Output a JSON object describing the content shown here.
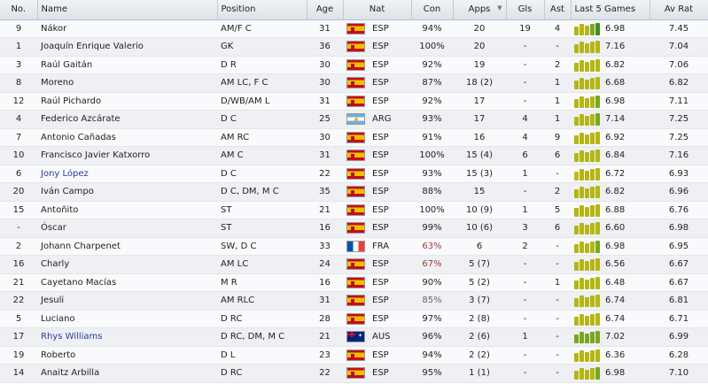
{
  "columns": {
    "no": "No.",
    "name": "Name",
    "position": "Position",
    "age": "Age",
    "nat": "Nat",
    "con": "Con",
    "apps": "Apps",
    "gls": "Gls",
    "ast": "Ast",
    "last5": "Last 5 Games",
    "avrat": "Av Rat"
  },
  "players": [
    {
      "no": "9",
      "name": "Nákor",
      "position": "AM/F C",
      "age": "31",
      "flag": "esp",
      "nat": "ESP",
      "con": "94%",
      "apps": "20",
      "gls": "19",
      "ast": "4",
      "bars": [
        "y",
        "y",
        "y",
        "g",
        "dg"
      ],
      "rating": "6.98",
      "avrat": "7.45"
    },
    {
      "no": "1",
      "name": "Joaquín Enrique Valerio",
      "position": "GK",
      "age": "36",
      "flag": "esp",
      "nat": "ESP",
      "con": "100%",
      "apps": "20",
      "gls": "-",
      "ast": "-",
      "bars": [
        "y",
        "y",
        "y",
        "y",
        "y"
      ],
      "rating": "7.16",
      "avrat": "7.04"
    },
    {
      "no": "3",
      "name": "Raúl Gaitán",
      "position": "D R",
      "age": "30",
      "flag": "esp",
      "nat": "ESP",
      "con": "92%",
      "apps": "19",
      "gls": "-",
      "ast": "2",
      "bars": [
        "y",
        "y",
        "y",
        "y",
        "y"
      ],
      "rating": "6.82",
      "avrat": "7.06"
    },
    {
      "no": "8",
      "name": "Moreno",
      "position": "AM LC, F C",
      "age": "30",
      "flag": "esp",
      "nat": "ESP",
      "con": "87%",
      "apps": "18 (2)",
      "gls": "-",
      "ast": "1",
      "bars": [
        "y",
        "y",
        "y",
        "y",
        "y"
      ],
      "rating": "6.68",
      "avrat": "6.82"
    },
    {
      "no": "12",
      "name": "Raúl Pichardo",
      "position": "D/WB/AM L",
      "age": "31",
      "flag": "esp",
      "nat": "ESP",
      "con": "92%",
      "apps": "17",
      "gls": "-",
      "ast": "1",
      "bars": [
        "y",
        "y",
        "y",
        "y",
        "g"
      ],
      "rating": "6.98",
      "avrat": "7.11"
    },
    {
      "no": "4",
      "name": "Federico Azcárate",
      "position": "D C",
      "age": "25",
      "flag": "arg",
      "nat": "ARG",
      "con": "93%",
      "apps": "17",
      "gls": "4",
      "ast": "1",
      "bars": [
        "y",
        "y",
        "y",
        "y",
        "g"
      ],
      "rating": "7.14",
      "avrat": "7.25"
    },
    {
      "no": "7",
      "name": "Antonio Cañadas",
      "position": "AM RC",
      "age": "30",
      "flag": "esp",
      "nat": "ESP",
      "con": "91%",
      "apps": "16",
      "gls": "4",
      "ast": "9",
      "bars": [
        "y",
        "y",
        "y",
        "y",
        "y"
      ],
      "rating": "6.92",
      "avrat": "7.25"
    },
    {
      "no": "10",
      "name": "Francisco Javier Katxorro",
      "position": "AM C",
      "age": "31",
      "flag": "esp",
      "nat": "ESP",
      "con": "100%",
      "apps": "15 (4)",
      "gls": "6",
      "ast": "6",
      "bars": [
        "y",
        "y",
        "y",
        "y",
        "y"
      ],
      "rating": "6.84",
      "avrat": "7.16"
    },
    {
      "no": "6",
      "name": "Jony López",
      "position": "D C",
      "age": "22",
      "flag": "esp",
      "nat": "ESP",
      "con": "93%",
      "apps": "15 (3)",
      "gls": "1",
      "ast": "-",
      "bars": [
        "o",
        "y",
        "y",
        "y",
        "y"
      ],
      "rating": "6.72",
      "avrat": "6.93",
      "link": true
    },
    {
      "no": "20",
      "name": "Iván Campo",
      "position": "D C, DM, M C",
      "age": "35",
      "flag": "esp",
      "nat": "ESP",
      "con": "88%",
      "apps": "15",
      "gls": "-",
      "ast": "2",
      "bars": [
        "y",
        "y",
        "y",
        "y",
        "y"
      ],
      "rating": "6.82",
      "avrat": "6.96"
    },
    {
      "no": "15",
      "name": "Antoñito",
      "position": "ST",
      "age": "21",
      "flag": "esp",
      "nat": "ESP",
      "con": "100%",
      "apps": "10 (9)",
      "gls": "1",
      "ast": "5",
      "bars": [
        "y",
        "y",
        "y",
        "y",
        "y"
      ],
      "rating": "6.88",
      "avrat": "6.76"
    },
    {
      "no": "-",
      "name": "Óscar",
      "position": "ST",
      "age": "16",
      "flag": "esp",
      "nat": "ESP",
      "con": "99%",
      "apps": "10 (6)",
      "gls": "3",
      "ast": "6",
      "bars": [
        "y",
        "y",
        "y",
        "y",
        "y"
      ],
      "rating": "6.60",
      "avrat": "6.98"
    },
    {
      "no": "2",
      "name": "Johann Charpenet",
      "position": "SW, D C",
      "age": "33",
      "flag": "fra",
      "nat": "FRA",
      "con": "63%",
      "apps": "6",
      "gls": "2",
      "ast": "-",
      "bars": [
        "y",
        "y",
        "y",
        "y",
        "g"
      ],
      "rating": "6.98",
      "avrat": "6.95",
      "warn": true
    },
    {
      "no": "16",
      "name": "Charly",
      "position": "AM LC",
      "age": "24",
      "flag": "esp",
      "nat": "ESP",
      "con": "67%",
      "apps": "5 (7)",
      "gls": "-",
      "ast": "-",
      "bars": [
        "y",
        "y",
        "y",
        "y",
        "y"
      ],
      "rating": "6.56",
      "avrat": "6.67",
      "warn": true
    },
    {
      "no": "21",
      "name": "Cayetano Macías",
      "position": "M R",
      "age": "16",
      "flag": "esp",
      "nat": "ESP",
      "con": "90%",
      "apps": "5 (2)",
      "gls": "-",
      "ast": "1",
      "bars": [
        "y",
        "y",
        "y",
        "y",
        "y"
      ],
      "rating": "6.48",
      "avrat": "6.67"
    },
    {
      "no": "22",
      "name": "Jesuli",
      "position": "AM RLC",
      "age": "31",
      "flag": "esp",
      "nat": "ESP",
      "con": "85%",
      "apps": "3 (7)",
      "gls": "-",
      "ast": "-",
      "bars": [
        "y",
        "y",
        "y",
        "y",
        "y"
      ],
      "rating": "6.74",
      "avrat": "6.81",
      "mutedcon": true
    },
    {
      "no": "5",
      "name": "Luciano",
      "position": "D RC",
      "age": "28",
      "flag": "esp",
      "nat": "ESP",
      "con": "97%",
      "apps": "2 (8)",
      "gls": "-",
      "ast": "-",
      "bars": [
        "y",
        "y",
        "y",
        "y",
        "y"
      ],
      "rating": "6.74",
      "avrat": "6.71"
    },
    {
      "no": "17",
      "name": "Rhys Williams",
      "position": "D RC, DM, M C",
      "age": "21",
      "flag": "aus",
      "nat": "AUS",
      "con": "96%",
      "apps": "2 (6)",
      "gls": "1",
      "ast": "-",
      "bars": [
        "g",
        "g",
        "g",
        "g",
        "g"
      ],
      "rating": "7.02",
      "avrat": "6.99",
      "link": true
    },
    {
      "no": "19",
      "name": "Roberto",
      "position": "D L",
      "age": "23",
      "flag": "esp",
      "nat": "ESP",
      "con": "94%",
      "apps": "2 (2)",
      "gls": "-",
      "ast": "-",
      "bars": [
        "y",
        "y",
        "y",
        "y",
        "y"
      ],
      "rating": "6.36",
      "avrat": "6.28"
    },
    {
      "no": "14",
      "name": "Anaitz Arbilla",
      "position": "D RC",
      "age": "22",
      "flag": "esp",
      "nat": "ESP",
      "con": "95%",
      "apps": "1 (1)",
      "gls": "-",
      "ast": "-",
      "bars": [
        "y",
        "y",
        "y",
        "y",
        "g"
      ],
      "rating": "6.98",
      "avrat": "7.10"
    }
  ]
}
